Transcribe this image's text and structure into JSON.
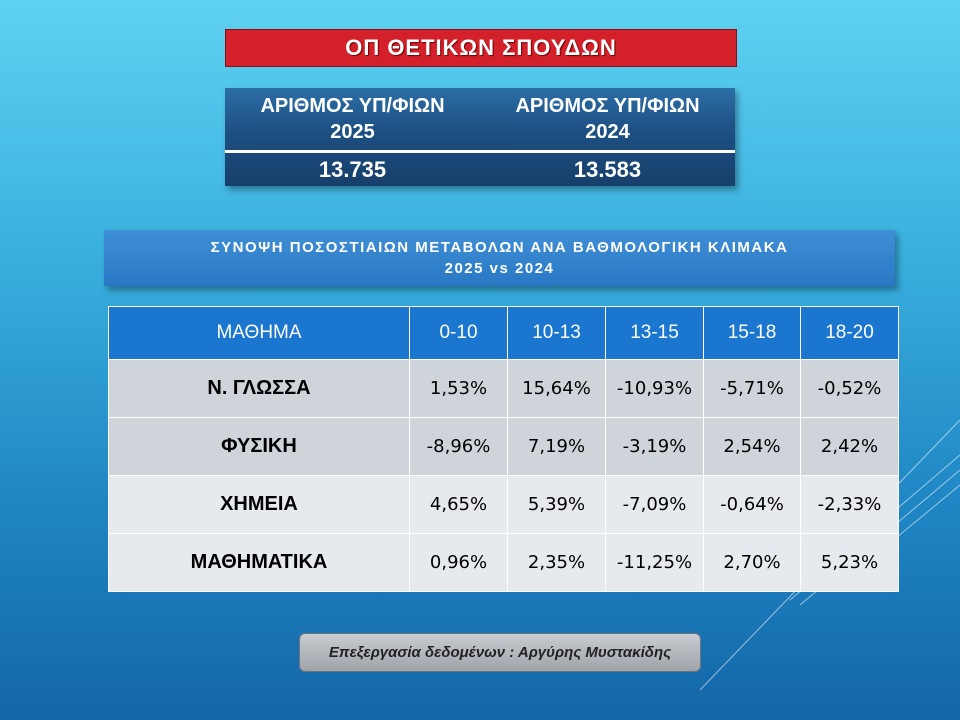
{
  "title": "ΟΠ ΘΕΤΙΚΩΝ ΣΠΟΥΔΩΝ",
  "counts": {
    "headers": [
      {
        "line1": "ΑΡΙΘΜΟΣ ΥΠ/ΦΙΩΝ",
        "line2": "2025"
      },
      {
        "line1": "ΑΡΙΘΜΟΣ ΥΠ/ΦΙΩΝ",
        "line2": "2024"
      }
    ],
    "values": [
      "13.735",
      "13.583"
    ]
  },
  "summary": {
    "line1": "ΣΥΝΟΨΗ ΠΟΣΟΣΤΙΑΙΩΝ ΜΕΤΑΒΟΛΩΝ ΑΝΑ ΒΑΘΜΟΛΟΓΙΚΗ ΚΛΙΜΑΚΑ",
    "line2": "2025 vs 2024"
  },
  "table": {
    "columns": [
      "ΜΑΘΗΜΑ",
      "0-10",
      "10-13",
      "13-15",
      "15-18",
      "18-20"
    ],
    "rows": [
      {
        "subject": "Ν. ΓΛΩΣΣΑ",
        "values": [
          "1,53%",
          "15,64%",
          "-10,93%",
          "-5,71%",
          "-0,52%"
        ]
      },
      {
        "subject": "ΦΥΣΙΚΗ",
        "values": [
          "-8,96%",
          "7,19%",
          "-3,19%",
          "2,54%",
          "2,42%"
        ]
      },
      {
        "subject": "ΧΗΜΕΙΑ",
        "values": [
          "4,65%",
          "5,39%",
          "-7,09%",
          "-0,64%",
          "-2,33%"
        ]
      },
      {
        "subject": "ΜΑΘΗΜΑΤΙΚΑ",
        "values": [
          "0,96%",
          "2,35%",
          "-11,25%",
          "2,70%",
          "5,23%"
        ]
      }
    ]
  },
  "credit": "Επεξεργασία δεδομένων : Αργύρης Μυστακίδης"
}
